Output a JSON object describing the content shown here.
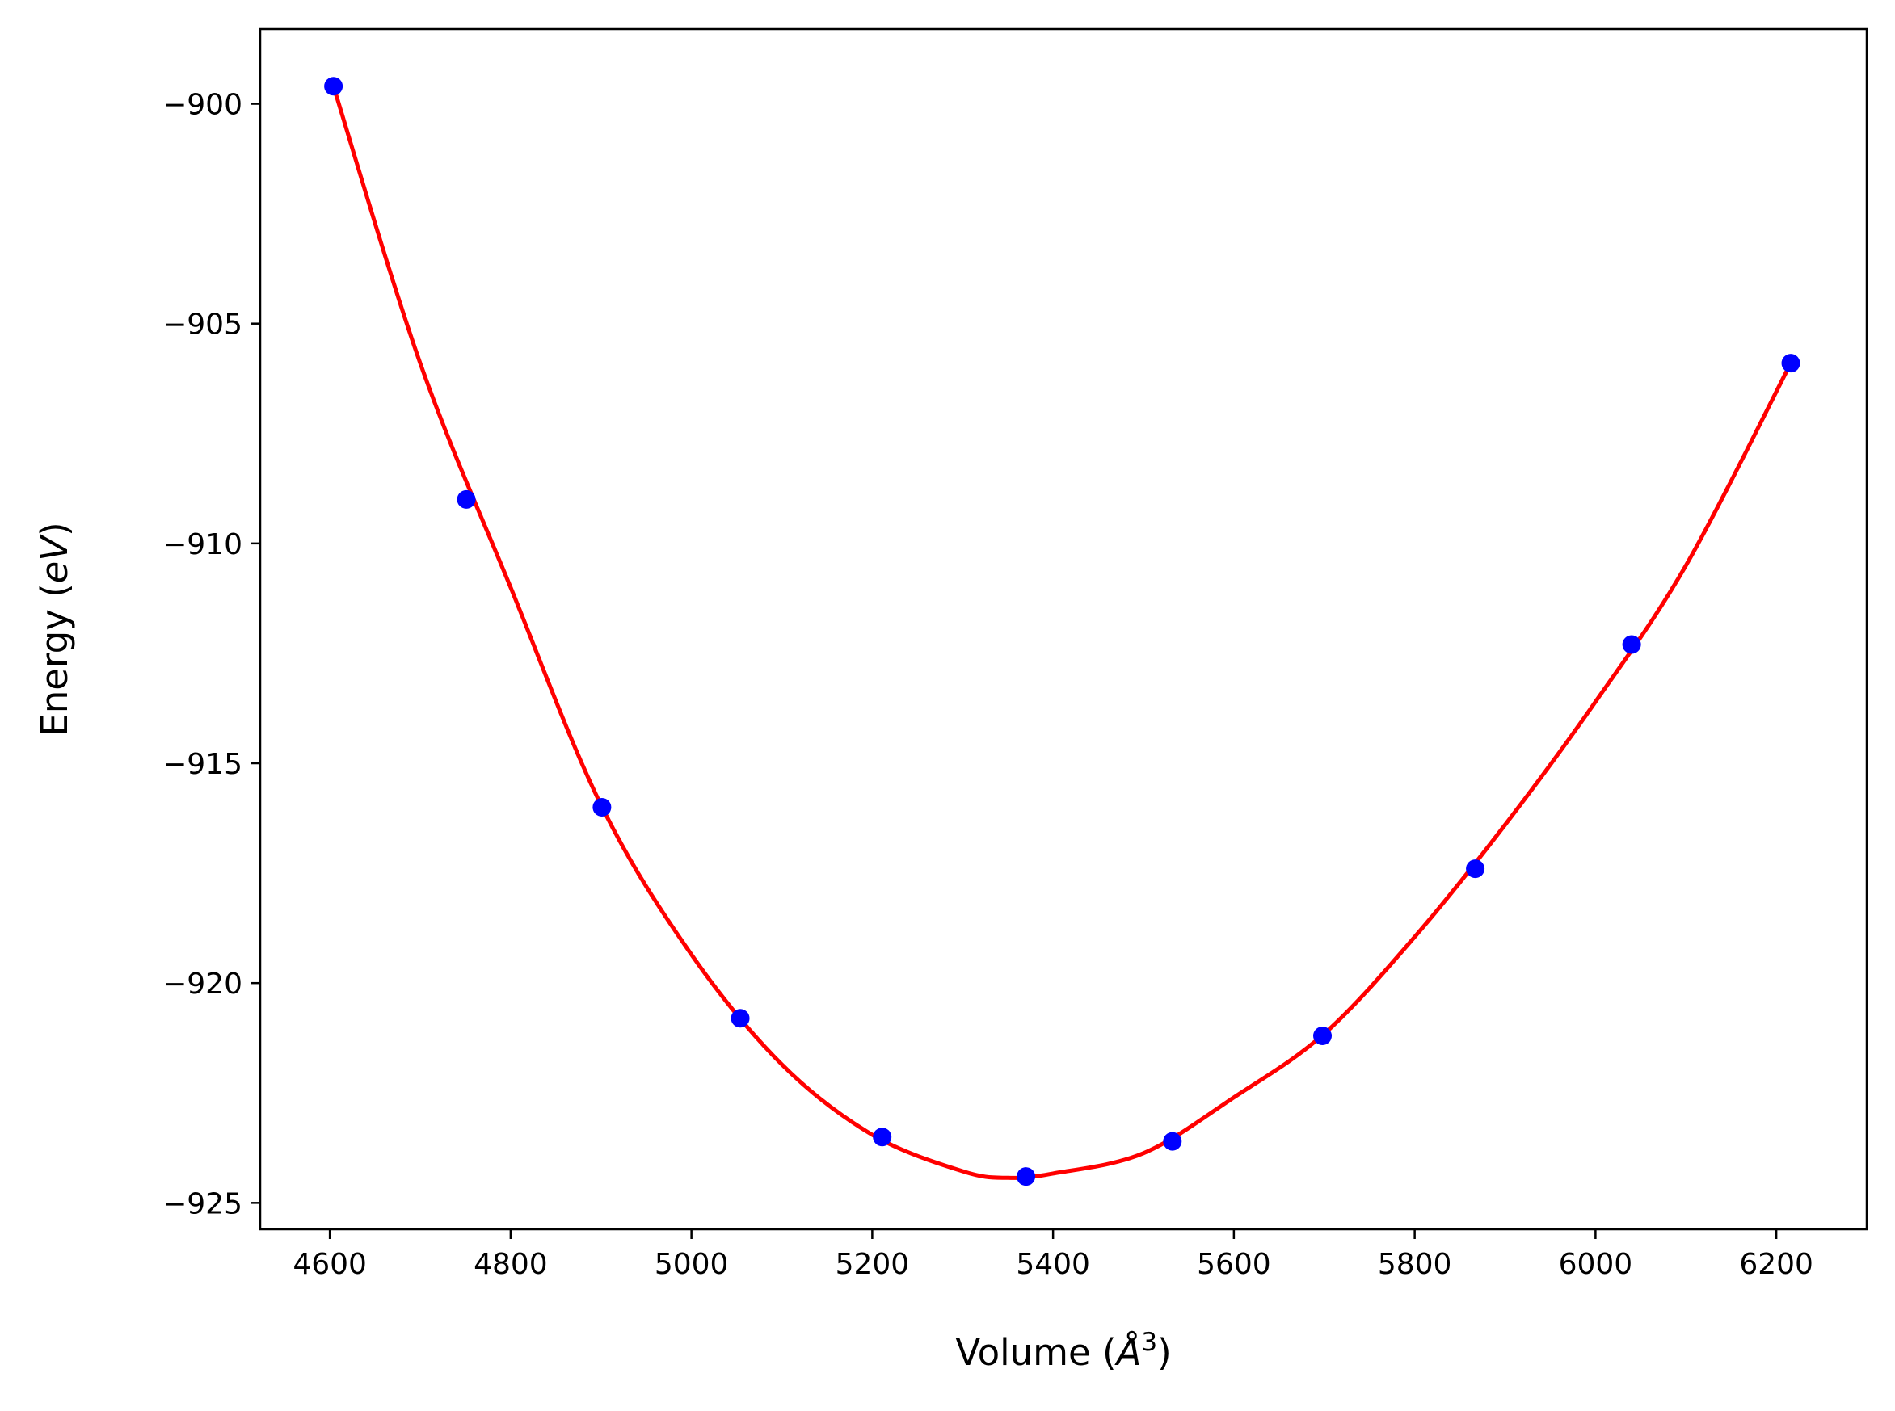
{
  "chart_data": {
    "type": "line+scatter",
    "title": "",
    "xlabel": {
      "prefix": "Volume (",
      "unit": "Å",
      "sup": "3",
      "suffix": ")"
    },
    "ylabel": {
      "prefix": "Energy (",
      "unit": "eV",
      "suffix": ")"
    },
    "xlim": [
      4523,
      6300
    ],
    "ylim": [
      -925.6,
      -898.3
    ],
    "xticks": [
      4600,
      4800,
      5000,
      5200,
      5400,
      5600,
      5800,
      6000,
      6200
    ],
    "xtick_labels": [
      "4600",
      "4800",
      "5000",
      "5200",
      "5400",
      "5600",
      "5800",
      "6000",
      "6200"
    ],
    "yticks": [
      -900,
      -905,
      -910,
      -915,
      -920,
      -925
    ],
    "ytick_labels": [
      "−900",
      "−905",
      "−910",
      "−915",
      "−920",
      "−925"
    ],
    "grid": false,
    "series": [
      {
        "kind": "points",
        "color": "#0000ff",
        "x": [
          4604,
          4751,
          4901,
          5054,
          5211,
          5370,
          5532,
          5698,
          5867,
          6040,
          6216
        ],
        "y": [
          -899.6,
          -909.0,
          -916.0,
          -920.8,
          -923.5,
          -924.4,
          -923.6,
          -921.2,
          -917.4,
          -912.3,
          -905.9
        ]
      },
      {
        "kind": "fit-curve",
        "color": "#ff0000",
        "x": [
          4604,
          4700,
          4800,
          4900,
          5000,
          5100,
          5200,
          5300,
          5350,
          5400,
          5500,
          5600,
          5700,
          5800,
          5900,
          6000,
          6100,
          6216
        ],
        "y": [
          -899.6,
          -905.9,
          -911.0,
          -915.95,
          -919.35,
          -921.85,
          -923.45,
          -924.28,
          -924.43,
          -924.33,
          -923.87,
          -922.6,
          -921.15,
          -918.95,
          -916.4,
          -913.6,
          -910.5,
          -905.9
        ]
      }
    ]
  }
}
